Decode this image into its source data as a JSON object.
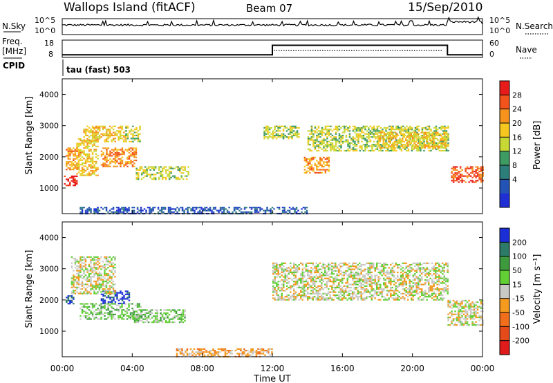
{
  "header": {
    "station": "Wallops Island (fitACF)",
    "beam": "Beam 07",
    "date": "15/Sep/2010"
  },
  "nsky_panel": {
    "left_label": "N.Sky",
    "right_label": "N.Search",
    "y_ticks": [
      "10^5",
      "10^0"
    ]
  },
  "freq_panel": {
    "left_label_line1": "Freq.",
    "left_label_line2": "[MHz]",
    "left_ticks": [
      "18",
      "8"
    ],
    "right_ticks": [
      "60",
      "0"
    ],
    "right_label": "Nave",
    "cpid_label": "CPID",
    "cpid_value": "tau (fast) 503"
  },
  "power_panel": {
    "ylabel": "Slant Range [km]",
    "colorbar_label": "Power [dB]",
    "colorbar_ticks": [
      "28",
      "24",
      "20",
      "16",
      "12",
      "8",
      "4"
    ],
    "colors": [
      "#e81b1b",
      "#f2521c",
      "#f7931d",
      "#f6c81f",
      "#c7d835",
      "#3e9b62",
      "#2d7e7a",
      "#2354b5",
      "#1f2fd4"
    ]
  },
  "velocity_panel": {
    "ylabel": "Slant Range [km]",
    "colorbar_label": "Velocity [m s⁻¹]",
    "colorbar_ticks": [
      "200",
      "100",
      "50",
      "15",
      "-15",
      "-50",
      "-100",
      "-200"
    ],
    "colors": [
      "#1c2fd6",
      "#2c7a67",
      "#3d9b3d",
      "#62d035",
      "#c9c9c6",
      "#f39a1f",
      "#f06e1c",
      "#e54b1a",
      "#e01b1b"
    ]
  },
  "x_axis": {
    "label": "Time UT",
    "ticks": [
      "00:00",
      "04:00",
      "08:00",
      "12:00",
      "16:00",
      "20:00",
      "00:00"
    ]
  },
  "chart_data": [
    {
      "type": "line",
      "title": "N.Sky",
      "x": [
        0,
        1,
        2,
        3,
        4,
        5,
        6,
        7,
        8,
        9,
        10,
        11,
        12,
        13,
        14,
        15,
        16,
        17,
        18,
        19,
        20,
        21,
        22,
        23,
        24
      ],
      "values": [
        3,
        3,
        3,
        3,
        3,
        3,
        3,
        3,
        3,
        3,
        3,
        3,
        3,
        3,
        3,
        3,
        3,
        3,
        3,
        3,
        3,
        3,
        4,
        4,
        3
      ],
      "ylim": [
        0,
        5
      ]
    },
    {
      "type": "line",
      "title": "Freq. [MHz]",
      "series": [
        {
          "name": "Freq.",
          "x": [
            0,
            12,
            12,
            22,
            22,
            24
          ],
          "values": [
            9.5,
            9.5,
            15,
            15,
            9.5,
            9.5
          ]
        }
      ],
      "ylim": [
        8,
        18
      ]
    },
    {
      "type": "heatmap",
      "title": "Power [dB]",
      "ylabel": "Slant Range [km]",
      "xlabel": "Time UT",
      "xlim": [
        0,
        24
      ],
      "ylim": [
        180,
        4500
      ],
      "y_ticks": [
        1000,
        2000,
        3000,
        4000
      ],
      "regions": [
        {
          "t0": 0.1,
          "t1": 0.8,
          "r0": 1100,
          "r1": 1400,
          "level": 8
        },
        {
          "t0": 0.2,
          "t1": 1.0,
          "r0": 1600,
          "r1": 2300,
          "level": 6
        },
        {
          "t0": 0.8,
          "t1": 2.0,
          "r0": 1400,
          "r1": 2600,
          "level": 5
        },
        {
          "t0": 1.2,
          "t1": 3.6,
          "r0": 2500,
          "r1": 3000,
          "level": 5
        },
        {
          "t0": 2.2,
          "t1": 4.2,
          "r0": 1700,
          "r1": 2300,
          "level": 6
        },
        {
          "t0": 3.6,
          "t1": 4.4,
          "r0": 2500,
          "r1": 3000,
          "level": 4
        },
        {
          "t0": 4.2,
          "t1": 7.2,
          "r0": 1300,
          "r1": 1700,
          "level": 4
        },
        {
          "t0": 11.5,
          "t1": 13.5,
          "r0": 2600,
          "r1": 3000,
          "level": 4
        },
        {
          "t0": 13.8,
          "t1": 15.2,
          "r0": 1500,
          "r1": 2000,
          "level": 6
        },
        {
          "t0": 14.0,
          "t1": 22.0,
          "r0": 2200,
          "r1": 3000,
          "level": 4
        },
        {
          "t0": 18.0,
          "t1": 22.0,
          "r0": 2300,
          "r1": 2800,
          "level": 5
        },
        {
          "t0": 22.2,
          "t1": 24.0,
          "r0": 1200,
          "r1": 1700,
          "level": 7
        },
        {
          "t0": 1.0,
          "t1": 14.0,
          "r0": 180,
          "r1": 400,
          "level": 1
        }
      ]
    },
    {
      "type": "heatmap",
      "title": "Velocity [m s⁻¹]",
      "ylabel": "Slant Range [km]",
      "xlabel": "Time UT",
      "xlim": [
        0,
        24
      ],
      "ylim": [
        180,
        4500
      ],
      "y_ticks": [
        1000,
        2000,
        3000,
        4000
      ],
      "regions": [
        {
          "t0": 0.2,
          "t1": 0.6,
          "r0": 1900,
          "r1": 2150,
          "level": 0
        },
        {
          "t0": 2.2,
          "t1": 3.8,
          "r0": 1900,
          "r1": 2300,
          "level": 0
        },
        {
          "t0": 0.5,
          "t1": 3.0,
          "r0": 2200,
          "r1": 3400,
          "level": 4
        },
        {
          "t0": 1.0,
          "t1": 4.5,
          "r0": 1400,
          "r1": 1900,
          "level": 3
        },
        {
          "t0": 4.0,
          "t1": 7.0,
          "r0": 1300,
          "r1": 1700,
          "level": 3
        },
        {
          "t0": 12.0,
          "t1": 22.0,
          "r0": 2000,
          "r1": 3200,
          "level": 4
        },
        {
          "t0": 22.0,
          "t1": 24.0,
          "r0": 1200,
          "r1": 2000,
          "level": 4
        },
        {
          "t0": 6.5,
          "t1": 12.0,
          "r0": 180,
          "r1": 450,
          "level": 5
        }
      ]
    }
  ]
}
